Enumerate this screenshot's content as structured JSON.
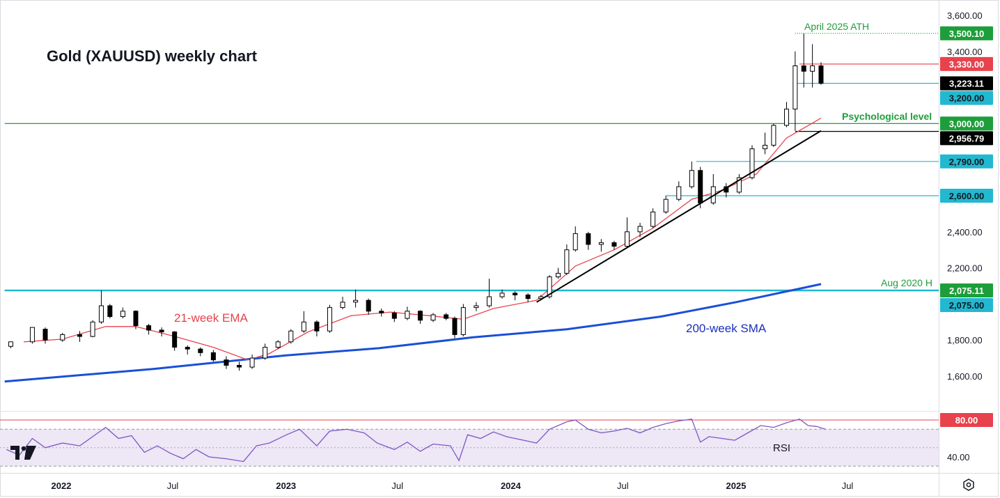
{
  "chart_data": {
    "type": "candlestick",
    "title": "Gold (XAUUSD) weekly chart",
    "price_axis": {
      "ticks": [
        "3,600.00",
        "3,400.00",
        "2,400.00",
        "2,200.00",
        "1,800.00",
        "1,600.00"
      ],
      "tick_values": [
        3600,
        3400,
        2400,
        2200,
        1800,
        1600
      ],
      "range": [
        1500,
        3700
      ]
    },
    "rsi_axis": {
      "ticks": [
        "40.00"
      ],
      "tick_values": [
        40
      ],
      "overbought": 80,
      "oversold": 30,
      "range": [
        25,
        85
      ],
      "label": "RSI"
    },
    "time_axis": {
      "labels": [
        {
          "text": "2022",
          "bold": true,
          "date": "2022-01-01"
        },
        {
          "text": "Jul",
          "bold": false,
          "date": "2022-07-01"
        },
        {
          "text": "2023",
          "bold": true,
          "date": "2023-01-01"
        },
        {
          "text": "Jul",
          "bold": false,
          "date": "2023-07-01"
        },
        {
          "text": "2024",
          "bold": true,
          "date": "2024-01-01"
        },
        {
          "text": "Jul",
          "bold": false,
          "date": "2024-07-01"
        },
        {
          "text": "2025",
          "bold": true,
          "date": "2025-01-01"
        },
        {
          "text": "Jul",
          "bold": false,
          "date": "2025-07-01"
        }
      ]
    },
    "price_tags": [
      {
        "text": "3,500.10",
        "value": 3500.1,
        "bg": "#1e9e3a",
        "fg": "#ffffff"
      },
      {
        "text": "3,330.00",
        "value": 3330,
        "bg": "#e8424d",
        "fg": "#ffffff"
      },
      {
        "text": "3,223.11",
        "value": 3223.11,
        "bg": "#000000",
        "fg": "#ffffff"
      },
      {
        "text": "3,200.00",
        "value": 3200,
        "bg": "#22b8cf",
        "fg": "#131722"
      },
      {
        "text": "3,000.00",
        "value": 3000,
        "bg": "#1e9e3a",
        "fg": "#ffffff"
      },
      {
        "text": "2,956.79",
        "value": 2956.79,
        "bg": "#000000",
        "fg": "#ffffff"
      },
      {
        "text": "2,790.00",
        "value": 2790,
        "bg": "#22b8cf",
        "fg": "#131722"
      },
      {
        "text": "2,600.00",
        "value": 2600,
        "bg": "#22b8cf",
        "fg": "#131722"
      },
      {
        "text": "2,075.11",
        "value": 2075.11,
        "bg": "#1e9e3a",
        "fg": "#ffffff"
      },
      {
        "text": "2,075.00",
        "value": 2075,
        "bg": "#22b8cf",
        "fg": "#131722"
      },
      {
        "text": "80.00",
        "value": 80,
        "bg": "#e8424d",
        "fg": "#ffffff",
        "pane": "rsi"
      }
    ],
    "annotations": [
      {
        "text": "April 2025 ATH",
        "color": "#1e9e3a"
      },
      {
        "text": "Psychological level",
        "color": "#1e9e3a"
      },
      {
        "text": "Aug 2020 H",
        "color": "#1e9e3a"
      },
      {
        "text": "21-week EMA",
        "color": "#e8424d"
      },
      {
        "text": "200-week SMA",
        "color": "#1a2fbf"
      }
    ],
    "horizontal_levels": [
      {
        "value": 3500.1,
        "color": "#1e9e3a",
        "style": "dotted",
        "from_date": "2025-04-07"
      },
      {
        "value": 3330,
        "color": "#e8424d",
        "style": "solid",
        "from_date": "2025-04-14"
      },
      {
        "value": 3223.11,
        "color": "#22b8cf",
        "style": "solid",
        "from_date": "2025-04-07"
      },
      {
        "value": 3000,
        "color": "#1e9e3a",
        "style": "solid",
        "from_date": "2021-10-01"
      },
      {
        "value": 2956.79,
        "color": "#000000",
        "style": "solid",
        "from_date": "2025-04-07"
      },
      {
        "value": 2790,
        "color": "#22b8cf",
        "style": "solid",
        "from_date": "2024-10-28"
      },
      {
        "value": 2600,
        "color": "#22b8cf",
        "style": "solid",
        "from_date": "2024-09-09"
      },
      {
        "value": 2075.11,
        "color": "#22b8cf",
        "style": "solid",
        "from_date": "2021-10-01"
      }
    ],
    "trendline": {
      "color": "#000000",
      "from": {
        "date": "2024-02-12",
        "value": 2010
      },
      "to": {
        "date": "2025-05-19",
        "value": 2960
      }
    },
    "ema21": [
      [
        "2021-11-01",
        1790
      ],
      [
        "2022-01-03",
        1805
      ],
      [
        "2022-03-14",
        1875
      ],
      [
        "2022-05-02",
        1875
      ],
      [
        "2022-07-04",
        1820
      ],
      [
        "2022-09-05",
        1760
      ],
      [
        "2022-10-31",
        1690
      ],
      [
        "2022-12-05",
        1725
      ],
      [
        "2023-02-06",
        1845
      ],
      [
        "2023-04-17",
        1935
      ],
      [
        "2023-06-19",
        1955
      ],
      [
        "2023-08-21",
        1935
      ],
      [
        "2023-10-16",
        1915
      ],
      [
        "2023-12-04",
        1975
      ],
      [
        "2024-02-12",
        2020
      ],
      [
        "2024-04-15",
        2210
      ],
      [
        "2024-06-17",
        2300
      ],
      [
        "2024-08-19",
        2420
      ],
      [
        "2024-10-21",
        2580
      ],
      [
        "2024-12-09",
        2630
      ],
      [
        "2025-02-03",
        2720
      ],
      [
        "2025-03-24",
        2920
      ],
      [
        "2025-05-19",
        3030
      ]
    ],
    "sma200": [
      [
        "2021-10-01",
        1570
      ],
      [
        "2022-06-01",
        1640
      ],
      [
        "2023-01-01",
        1715
      ],
      [
        "2023-06-01",
        1755
      ],
      [
        "2023-11-01",
        1815
      ],
      [
        "2024-04-01",
        1860
      ],
      [
        "2024-09-01",
        1930
      ],
      [
        "2025-01-01",
        2010
      ],
      [
        "2025-05-19",
        2110
      ]
    ],
    "candles": [
      [
        "2021-10-11",
        1765,
        1790,
        1755,
        1780
      ],
      [
        "2021-11-15",
        1790,
        1870,
        1780,
        1860
      ],
      [
        "2021-12-06",
        1860,
        1800,
        1780,
        1870
      ],
      [
        "2022-01-03",
        1800,
        1830,
        1790,
        1840
      ],
      [
        "2022-01-31",
        1830,
        1820,
        1790,
        1850
      ],
      [
        "2022-02-21",
        1820,
        1900,
        1815,
        1910
      ],
      [
        "2022-03-07",
        1900,
        1990,
        1890,
        2075
      ],
      [
        "2022-03-21",
        1990,
        1930,
        1920,
        2000
      ],
      [
        "2022-04-11",
        1930,
        1960,
        1920,
        1980
      ],
      [
        "2022-05-02",
        1960,
        1880,
        1860,
        1965
      ],
      [
        "2022-05-23",
        1880,
        1855,
        1830,
        1890
      ],
      [
        "2022-06-13",
        1855,
        1845,
        1820,
        1870
      ],
      [
        "2022-07-04",
        1845,
        1760,
        1740,
        1850
      ],
      [
        "2022-07-25",
        1760,
        1750,
        1720,
        1770
      ],
      [
        "2022-08-15",
        1750,
        1730,
        1710,
        1760
      ],
      [
        "2022-09-05",
        1730,
        1690,
        1680,
        1745
      ],
      [
        "2022-09-26",
        1690,
        1660,
        1640,
        1710
      ],
      [
        "2022-10-17",
        1660,
        1650,
        1630,
        1680
      ],
      [
        "2022-11-07",
        1650,
        1700,
        1640,
        1720
      ],
      [
        "2022-11-28",
        1700,
        1760,
        1690,
        1780
      ],
      [
        "2022-12-19",
        1760,
        1790,
        1750,
        1800
      ],
      [
        "2023-01-09",
        1790,
        1850,
        1780,
        1860
      ],
      [
        "2023-01-30",
        1850,
        1900,
        1840,
        1960
      ],
      [
        "2023-02-20",
        1900,
        1850,
        1820,
        1910
      ],
      [
        "2023-03-13",
        1850,
        1980,
        1840,
        1995
      ],
      [
        "2023-04-03",
        1980,
        2010,
        1970,
        2040
      ],
      [
        "2023-04-24",
        2010,
        2020,
        1980,
        2080
      ],
      [
        "2023-05-15",
        2020,
        1960,
        1940,
        2030
      ],
      [
        "2023-06-05",
        1960,
        1950,
        1930,
        1975
      ],
      [
        "2023-06-26",
        1950,
        1920,
        1900,
        1960
      ],
      [
        "2023-07-17",
        1920,
        1960,
        1910,
        1985
      ],
      [
        "2023-08-07",
        1960,
        1910,
        1890,
        1965
      ],
      [
        "2023-08-28",
        1910,
        1940,
        1900,
        1950
      ],
      [
        "2023-09-18",
        1940,
        1920,
        1910,
        1950
      ],
      [
        "2023-10-02",
        1920,
        1830,
        1810,
        1930
      ],
      [
        "2023-10-16",
        1830,
        1980,
        1820,
        2000
      ],
      [
        "2023-11-06",
        1980,
        1990,
        1960,
        2010
      ],
      [
        "2023-11-27",
        1990,
        2040,
        1980,
        2140
      ],
      [
        "2023-12-18",
        2040,
        2060,
        2030,
        2080
      ],
      [
        "2024-01-08",
        2060,
        2050,
        2020,
        2070
      ],
      [
        "2024-01-29",
        2050,
        2030,
        2010,
        2060
      ],
      [
        "2024-02-19",
        2030,
        2040,
        2020,
        2050
      ],
      [
        "2024-03-04",
        2040,
        2150,
        2030,
        2160
      ],
      [
        "2024-03-18",
        2150,
        2170,
        2140,
        2200
      ],
      [
        "2024-04-01",
        2170,
        2300,
        2160,
        2330
      ],
      [
        "2024-04-15",
        2300,
        2390,
        2290,
        2430
      ],
      [
        "2024-05-06",
        2390,
        2330,
        2300,
        2400
      ],
      [
        "2024-05-27",
        2330,
        2340,
        2290,
        2360
      ],
      [
        "2024-06-17",
        2340,
        2320,
        2300,
        2350
      ],
      [
        "2024-07-08",
        2320,
        2400,
        2310,
        2480
      ],
      [
        "2024-07-29",
        2400,
        2430,
        2370,
        2450
      ],
      [
        "2024-08-19",
        2430,
        2510,
        2420,
        2530
      ],
      [
        "2024-09-09",
        2510,
        2580,
        2500,
        2600
      ],
      [
        "2024-09-30",
        2580,
        2650,
        2570,
        2680
      ],
      [
        "2024-10-21",
        2650,
        2740,
        2640,
        2790
      ],
      [
        "2024-11-04",
        2740,
        2560,
        2530,
        2760
      ],
      [
        "2024-11-25",
        2560,
        2650,
        2550,
        2720
      ],
      [
        "2024-12-16",
        2650,
        2620,
        2590,
        2670
      ],
      [
        "2025-01-06",
        2620,
        2700,
        2610,
        2720
      ],
      [
        "2025-01-27",
        2700,
        2860,
        2690,
        2880
      ],
      [
        "2025-02-17",
        2860,
        2880,
        2830,
        2950
      ],
      [
        "2025-03-03",
        2880,
        2990,
        2870,
        3000
      ],
      [
        "2025-03-24",
        2990,
        3080,
        2980,
        3120
      ],
      [
        "2025-04-07",
        3080,
        3320,
        2960,
        3400
      ],
      [
        "2025-04-21",
        3320,
        3290,
        3200,
        3500.1
      ],
      [
        "2025-05-05",
        3290,
        3320,
        3200,
        3440
      ],
      [
        "2025-05-19",
        3320,
        3223.11,
        3215,
        3340
      ]
    ],
    "rsi": [
      [
        "2021-10-04",
        48
      ],
      [
        "2021-10-25",
        42
      ],
      [
        "2021-11-15",
        60
      ],
      [
        "2021-12-06",
        50
      ],
      [
        "2022-01-03",
        55
      ],
      [
        "2022-01-31",
        52
      ],
      [
        "2022-02-21",
        62
      ],
      [
        "2022-03-14",
        72
      ],
      [
        "2022-04-04",
        60
      ],
      [
        "2022-04-25",
        63
      ],
      [
        "2022-05-16",
        45
      ],
      [
        "2022-06-06",
        52
      ],
      [
        "2022-06-27",
        44
      ],
      [
        "2022-07-18",
        38
      ],
      [
        "2022-08-08",
        48
      ],
      [
        "2022-08-29",
        40
      ],
      [
        "2022-09-26",
        38
      ],
      [
        "2022-10-24",
        35
      ],
      [
        "2022-11-14",
        52
      ],
      [
        "2022-12-05",
        55
      ],
      [
        "2023-01-02",
        64
      ],
      [
        "2023-01-23",
        70
      ],
      [
        "2023-02-20",
        52
      ],
      [
        "2023-03-13",
        68
      ],
      [
        "2023-04-10",
        70
      ],
      [
        "2023-05-08",
        66
      ],
      [
        "2023-05-29",
        55
      ],
      [
        "2023-06-26",
        48
      ],
      [
        "2023-07-17",
        56
      ],
      [
        "2023-08-07",
        46
      ],
      [
        "2023-08-28",
        54
      ],
      [
        "2023-09-25",
        52
      ],
      [
        "2023-10-09",
        36
      ],
      [
        "2023-10-23",
        64
      ],
      [
        "2023-11-13",
        60
      ],
      [
        "2023-12-04",
        67
      ],
      [
        "2023-12-25",
        62
      ],
      [
        "2024-01-22",
        58
      ],
      [
        "2024-02-12",
        55
      ],
      [
        "2024-03-04",
        70
      ],
      [
        "2024-04-01",
        78
      ],
      [
        "2024-04-15",
        80
      ],
      [
        "2024-05-06",
        70
      ],
      [
        "2024-05-27",
        66
      ],
      [
        "2024-06-17",
        68
      ],
      [
        "2024-07-08",
        71
      ],
      [
        "2024-07-29",
        66
      ],
      [
        "2024-08-19",
        72
      ],
      [
        "2024-09-09",
        76
      ],
      [
        "2024-09-30",
        79
      ],
      [
        "2024-10-21",
        81
      ],
      [
        "2024-11-04",
        56
      ],
      [
        "2024-11-18",
        62
      ],
      [
        "2024-12-09",
        60
      ],
      [
        "2024-12-30",
        58
      ],
      [
        "2025-01-20",
        66
      ],
      [
        "2025-02-10",
        74
      ],
      [
        "2025-03-03",
        72
      ],
      [
        "2025-03-24",
        77
      ],
      [
        "2025-04-14",
        81
      ],
      [
        "2025-04-28",
        74
      ],
      [
        "2025-05-12",
        73
      ],
      [
        "2025-05-26",
        70
      ]
    ]
  },
  "ui": {
    "settings_icon": "settings-icon",
    "logo": "tradingview-logo",
    "colors": {
      "bull_body": "#ffffff",
      "bear_body": "#000000",
      "candle_stroke": "#000000",
      "ema": "#e8424d",
      "sma": "#1a4fd6",
      "rsi_line": "#7e57c2",
      "rsi_band": "#ede7f6",
      "grid": "#e0e3eb"
    }
  }
}
